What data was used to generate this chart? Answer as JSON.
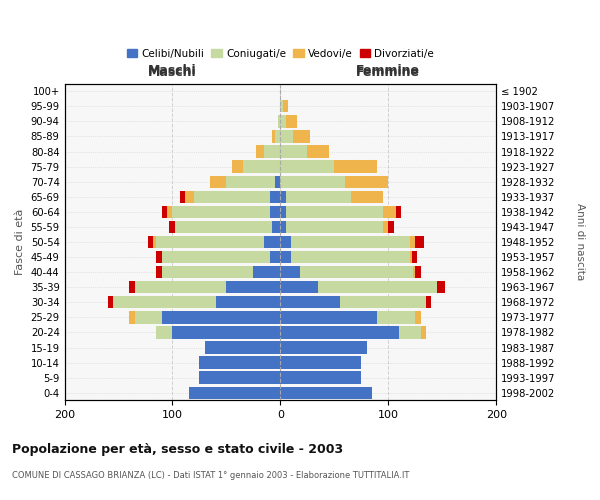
{
  "age_groups": [
    "0-4",
    "5-9",
    "10-14",
    "15-19",
    "20-24",
    "25-29",
    "30-34",
    "35-39",
    "40-44",
    "45-49",
    "50-54",
    "55-59",
    "60-64",
    "65-69",
    "70-74",
    "75-79",
    "80-84",
    "85-89",
    "90-94",
    "95-99",
    "100+"
  ],
  "birth_years": [
    "1998-2002",
    "1993-1997",
    "1988-1992",
    "1983-1987",
    "1978-1982",
    "1973-1977",
    "1968-1972",
    "1963-1967",
    "1958-1962",
    "1953-1957",
    "1948-1952",
    "1943-1947",
    "1938-1942",
    "1933-1937",
    "1928-1932",
    "1923-1927",
    "1918-1922",
    "1913-1917",
    "1908-1912",
    "1903-1907",
    "≤ 1902"
  ],
  "male": {
    "celibi": [
      85,
      75,
      75,
      70,
      100,
      110,
      60,
      50,
      25,
      10,
      15,
      8,
      10,
      10,
      5,
      0,
      0,
      0,
      0,
      0,
      0
    ],
    "coniugati": [
      0,
      0,
      0,
      0,
      15,
      25,
      95,
      85,
      85,
      100,
      100,
      90,
      90,
      70,
      45,
      35,
      15,
      5,
      2,
      0,
      0
    ],
    "vedovi": [
      0,
      0,
      0,
      0,
      0,
      5,
      0,
      0,
      0,
      0,
      3,
      0,
      5,
      8,
      15,
      10,
      8,
      3,
      0,
      0,
      0
    ],
    "divorziati": [
      0,
      0,
      0,
      0,
      0,
      0,
      5,
      5,
      5,
      5,
      5,
      5,
      5,
      5,
      0,
      0,
      0,
      0,
      0,
      0,
      0
    ]
  },
  "female": {
    "nubili": [
      85,
      75,
      75,
      80,
      110,
      90,
      55,
      35,
      18,
      10,
      10,
      5,
      5,
      5,
      0,
      0,
      0,
      0,
      0,
      0,
      0
    ],
    "coniugate": [
      0,
      0,
      0,
      0,
      20,
      35,
      80,
      110,
      105,
      110,
      110,
      90,
      90,
      60,
      60,
      50,
      25,
      12,
      5,
      2,
      0
    ],
    "vedove": [
      0,
      0,
      0,
      0,
      5,
      5,
      0,
      0,
      2,
      2,
      5,
      5,
      12,
      30,
      40,
      40,
      20,
      15,
      10,
      5,
      0
    ],
    "divorziate": [
      0,
      0,
      0,
      0,
      0,
      0,
      5,
      8,
      5,
      5,
      8,
      5,
      5,
      0,
      0,
      0,
      0,
      0,
      0,
      0,
      0
    ]
  },
  "color_celibi": "#4472C4",
  "color_coniugati": "#C5D9A0",
  "color_vedovi": "#F0B44C",
  "color_divorziati": "#CC0000",
  "xlim": 200,
  "title": "Popolazione per età, sesso e stato civile - 2003",
  "subtitle": "COMUNE DI CASSAGO BRIANZA (LC) - Dati ISTAT 1° gennaio 2003 - Elaborazione TUTTITALIA.IT",
  "ylabel": "Fasce di età",
  "ylabel_right": "Anni di nascita",
  "label_maschi": "Maschi",
  "label_femmine": "Femmine",
  "legend_celibi": "Celibi/Nubili",
  "legend_coniugati": "Coniugati/e",
  "legend_vedovi": "Vedovi/e",
  "legend_divorziati": "Divorziati/e",
  "bg_color": "#f7f7f7",
  "grid_color": "#d0d0d0"
}
